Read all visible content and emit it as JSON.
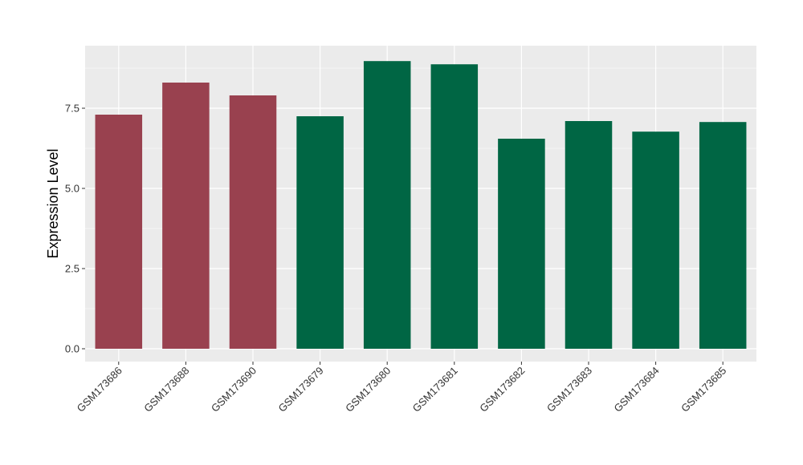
{
  "colors": {
    "panel_bg": "#EBEBEB",
    "grid": "#FFFFFF",
    "tick": "#333333",
    "group_a": "#99414F",
    "group_b": "#006644"
  },
  "chart_data": {
    "type": "bar",
    "title": "",
    "xlabel": "",
    "ylabel": "Expression Level",
    "categories": [
      "GSM173686",
      "GSM173688",
      "GSM173690",
      "GSM173679",
      "GSM173680",
      "GSM173681",
      "GSM173682",
      "GSM173683",
      "GSM173684",
      "GSM173685"
    ],
    "values": [
      7.3,
      8.3,
      7.9,
      7.25,
      8.97,
      8.87,
      6.55,
      7.1,
      6.77,
      7.07
    ],
    "bar_groups": [
      "a",
      "a",
      "a",
      "b",
      "b",
      "b",
      "b",
      "b",
      "b",
      "b"
    ],
    "ylim": [
      -0.4,
      9.45
    ],
    "yticks": [
      0,
      2.5,
      5,
      7.5
    ],
    "ytick_labels": [
      "0.0",
      "2.5",
      "5.0",
      "7.5"
    ],
    "grid": true,
    "legend": false
  }
}
